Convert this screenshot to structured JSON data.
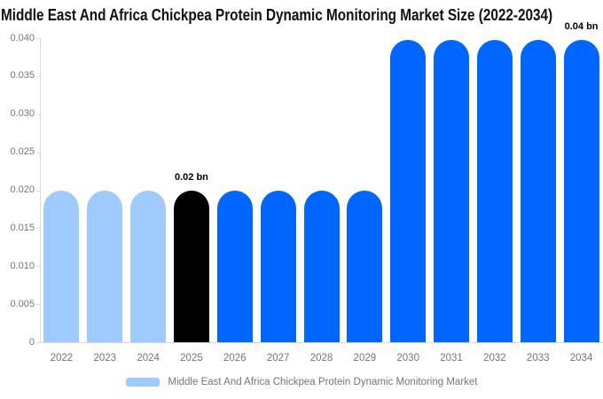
{
  "title": "Middle East And Africa Chickpea Protein Dynamic Monitoring Market Size (2022-2034)",
  "legend": {
    "label": "Middle East And Africa Chickpea Protein Dynamic Monitoring Market",
    "swatch_color": "#9FCAFF"
  },
  "colors": {
    "light_blue": "#9FCAFF",
    "bright_blue": "#0066FF",
    "highlight_black": "#000000",
    "axis_line": "#D9D9D9",
    "axis_text": "#757575",
    "title_text": "#111111"
  },
  "chart_data": {
    "type": "bar",
    "title": "Middle East And Africa Chickpea Protein Dynamic Monitoring Market Size (2022-2034)",
    "xlabel": "",
    "ylabel": "",
    "unit": "bn",
    "categories": [
      "2022",
      "2023",
      "2024",
      "2025",
      "2026",
      "2027",
      "2028",
      "2029",
      "2030",
      "2031",
      "2032",
      "2033",
      "2034"
    ],
    "values": [
      0.0199,
      0.0199,
      0.0199,
      0.0199,
      0.0199,
      0.0199,
      0.0199,
      0.0199,
      0.0398,
      0.0398,
      0.0398,
      0.0398,
      0.0398
    ],
    "bar_colors": [
      "#9FCAFF",
      "#9FCAFF",
      "#9FCAFF",
      "#000000",
      "#0066FF",
      "#0066FF",
      "#0066FF",
      "#0066FF",
      "#0066FF",
      "#0066FF",
      "#0066FF",
      "#0066FF",
      "#0066FF"
    ],
    "ylim": [
      0,
      0.04
    ],
    "yticks": [
      {
        "value": 0,
        "label": "0"
      },
      {
        "value": 0.005,
        "label": "0.005"
      },
      {
        "value": 0.01,
        "label": "0.010"
      },
      {
        "value": 0.015,
        "label": "0.015"
      },
      {
        "value": 0.02,
        "label": "0.020"
      },
      {
        "value": 0.025,
        "label": "0.025"
      },
      {
        "value": 0.03,
        "label": "0.030"
      },
      {
        "value": 0.035,
        "label": "0.035"
      },
      {
        "value": 0.04,
        "label": "0.040"
      }
    ],
    "annotations": [
      {
        "category": "2025",
        "text": "0.02 bn"
      },
      {
        "category": "2034",
        "text": "0.04 bn"
      }
    ],
    "grid": false,
    "legend_position": "bottom"
  }
}
